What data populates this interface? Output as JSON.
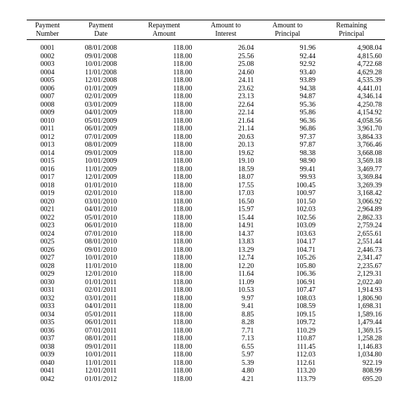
{
  "table": {
    "columns": [
      "Payment\nNumber",
      "Payment\nDate",
      "Repayment\nAmount",
      "Amount to\nInterest",
      "Amount to\nPrincipal",
      "Remaining\nPrincipal"
    ],
    "rows": [
      [
        "0001",
        "08/01/2008",
        "118.00",
        "26.04",
        "91.96",
        "4,908.04"
      ],
      [
        "0002",
        "09/01/2008",
        "118.00",
        "25.56",
        "92.44",
        "4,815.60"
      ],
      [
        "0003",
        "10/01/2008",
        "118.00",
        "25.08",
        "92.92",
        "4,722.68"
      ],
      [
        "0004",
        "11/01/2008",
        "118.00",
        "24.60",
        "93.40",
        "4,629.28"
      ],
      [
        "0005",
        "12/01/2008",
        "118.00",
        "24.11",
        "93.89",
        "4,535.39"
      ],
      [
        "0006",
        "01/01/2009",
        "118.00",
        "23.62",
        "94.38",
        "4,441.01"
      ],
      [
        "0007",
        "02/01/2009",
        "118.00",
        "23.13",
        "94.87",
        "4,346.14"
      ],
      [
        "0008",
        "03/01/2009",
        "118.00",
        "22.64",
        "95.36",
        "4,250.78"
      ],
      [
        "0009",
        "04/01/2009",
        "118.00",
        "22.14",
        "95.86",
        "4,154.92"
      ],
      [
        "0010",
        "05/01/2009",
        "118.00",
        "21.64",
        "96.36",
        "4,058.56"
      ],
      [
        "0011",
        "06/01/2009",
        "118.00",
        "21.14",
        "96.86",
        "3,961.70"
      ],
      [
        "0012",
        "07/01/2009",
        "118.00",
        "20.63",
        "97.37",
        "3,864.33"
      ],
      [
        "0013",
        "08/01/2009",
        "118.00",
        "20.13",
        "97.87",
        "3,766.46"
      ],
      [
        "0014",
        "09/01/2009",
        "118.00",
        "19.62",
        "98.38",
        "3,668.08"
      ],
      [
        "0015",
        "10/01/2009",
        "118.00",
        "19.10",
        "98.90",
        "3,569.18"
      ],
      [
        "0016",
        "11/01/2009",
        "118.00",
        "18.59",
        "99.41",
        "3,469.77"
      ],
      [
        "0017",
        "12/01/2009",
        "118.00",
        "18.07",
        "99.93",
        "3,369.84"
      ],
      [
        "0018",
        "01/01/2010",
        "118.00",
        "17.55",
        "100.45",
        "3,269.39"
      ],
      [
        "0019",
        "02/01/2010",
        "118.00",
        "17.03",
        "100.97",
        "3,168.42"
      ],
      [
        "0020",
        "03/01/2010",
        "118.00",
        "16.50",
        "101.50",
        "3,066.92"
      ],
      [
        "0021",
        "04/01/2010",
        "118.00",
        "15.97",
        "102.03",
        "2,964.89"
      ],
      [
        "0022",
        "05/01/2010",
        "118.00",
        "15.44",
        "102.56",
        "2,862.33"
      ],
      [
        "0023",
        "06/01/2010",
        "118.00",
        "14.91",
        "103.09",
        "2,759.24"
      ],
      [
        "0024",
        "07/01/2010",
        "118.00",
        "14.37",
        "103.63",
        "2,655.61"
      ],
      [
        "0025",
        "08/01/2010",
        "118.00",
        "13.83",
        "104.17",
        "2,551.44"
      ],
      [
        "0026",
        "09/01/2010",
        "118.00",
        "13.29",
        "104.71",
        "2,446.73"
      ],
      [
        "0027",
        "10/01/2010",
        "118.00",
        "12.74",
        "105.26",
        "2,341.47"
      ],
      [
        "0028",
        "11/01/2010",
        "118.00",
        "12.20",
        "105.80",
        "2,235.67"
      ],
      [
        "0029",
        "12/01/2010",
        "118.00",
        "11.64",
        "106.36",
        "2,129.31"
      ],
      [
        "0030",
        "01/01/2011",
        "118.00",
        "11.09",
        "106.91",
        "2,022.40"
      ],
      [
        "0031",
        "02/01/2011",
        "118.00",
        "10.53",
        "107.47",
        "1,914.93"
      ],
      [
        "0032",
        "03/01/2011",
        "118.00",
        "9.97",
        "108.03",
        "1,806.90"
      ],
      [
        "0033",
        "04/01/2011",
        "118.00",
        "9.41",
        "108.59",
        "1,698.31"
      ],
      [
        "0034",
        "05/01/2011",
        "118.00",
        "8.85",
        "109.15",
        "1,589.16"
      ],
      [
        "0035",
        "06/01/2011",
        "118.00",
        "8.28",
        "109.72",
        "1,479.44"
      ],
      [
        "0036",
        "07/01/2011",
        "118.00",
        "7.71",
        "110.29",
        "1,369.15"
      ],
      [
        "0037",
        "08/01/2011",
        "118.00",
        "7.13",
        "110.87",
        "1,258.28"
      ],
      [
        "0038",
        "09/01/2011",
        "118.00",
        "6.55",
        "111.45",
        "1,146.83"
      ],
      [
        "0039",
        "10/01/2011",
        "118.00",
        "5.97",
        "112.03",
        "1,034.80"
      ],
      [
        "0040",
        "11/01/2011",
        "118.00",
        "5.39",
        "112.61",
        "922.19"
      ],
      [
        "0041",
        "12/01/2011",
        "118.00",
        "4.80",
        "113.20",
        "808.99"
      ],
      [
        "0042",
        "01/01/2012",
        "118.00",
        "4.21",
        "113.79",
        "695.20"
      ]
    ],
    "header_border_color": "#000000",
    "background_color": "#ffffff",
    "font": "Georgia",
    "font_size_pt": 8
  }
}
